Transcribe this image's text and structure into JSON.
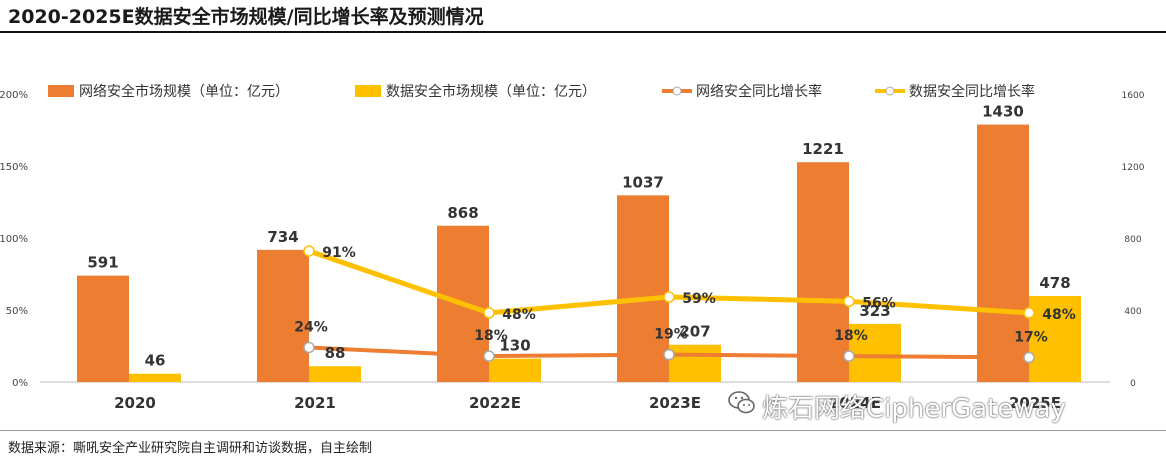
{
  "title": "2020-2025E数据安全市场规模/同比增长率及预测情况",
  "source": "数据来源：嘶吼安全产业研究院自主调研和访谈数据，自主绘制",
  "watermark": "炼石网络CipherGateway",
  "colors": {
    "network": "#ED7D31",
    "data": "#FFC000",
    "text": "#333333"
  },
  "chart_data": {
    "type": "bar",
    "categories": [
      "2020",
      "2021",
      "2022E",
      "2023E",
      "2024E",
      "2025E"
    ],
    "series": [
      {
        "name": "网络安全市场规模（单位：亿元）",
        "kind": "bar",
        "axis": "right",
        "values": [
          591,
          734,
          868,
          1037,
          1221,
          1430
        ],
        "labels": [
          "591",
          "734",
          "868",
          "1037",
          "1221",
          "1430"
        ]
      },
      {
        "name": "数据安全市场规模（单位：亿元）",
        "kind": "bar",
        "axis": "right",
        "values": [
          46,
          88,
          130,
          207,
          323,
          478
        ],
        "labels": [
          "46",
          "88",
          "130",
          "207",
          "323",
          "478"
        ]
      },
      {
        "name": "网络安全同比增长率",
        "kind": "line",
        "axis": "left",
        "values": [
          null,
          24,
          18,
          19,
          18,
          17
        ],
        "labels": [
          "",
          "24%",
          "18%",
          "19%",
          "18%",
          "17%"
        ]
      },
      {
        "name": "数据安全同比增长率",
        "kind": "line",
        "axis": "left",
        "values": [
          null,
          91,
          48,
          59,
          56,
          48
        ],
        "labels": [
          "",
          "91%",
          "48%",
          "59%",
          "56%",
          "48%"
        ]
      }
    ],
    "left_axis": {
      "ticks": [
        "0%",
        "50%",
        "100%",
        "150%",
        "200%"
      ],
      "range": [
        0,
        200
      ]
    },
    "right_axis": {
      "ticks": [
        "0",
        "400",
        "800",
        "1200",
        "1600"
      ],
      "range": [
        0,
        1600
      ]
    },
    "legend_position": "top"
  }
}
